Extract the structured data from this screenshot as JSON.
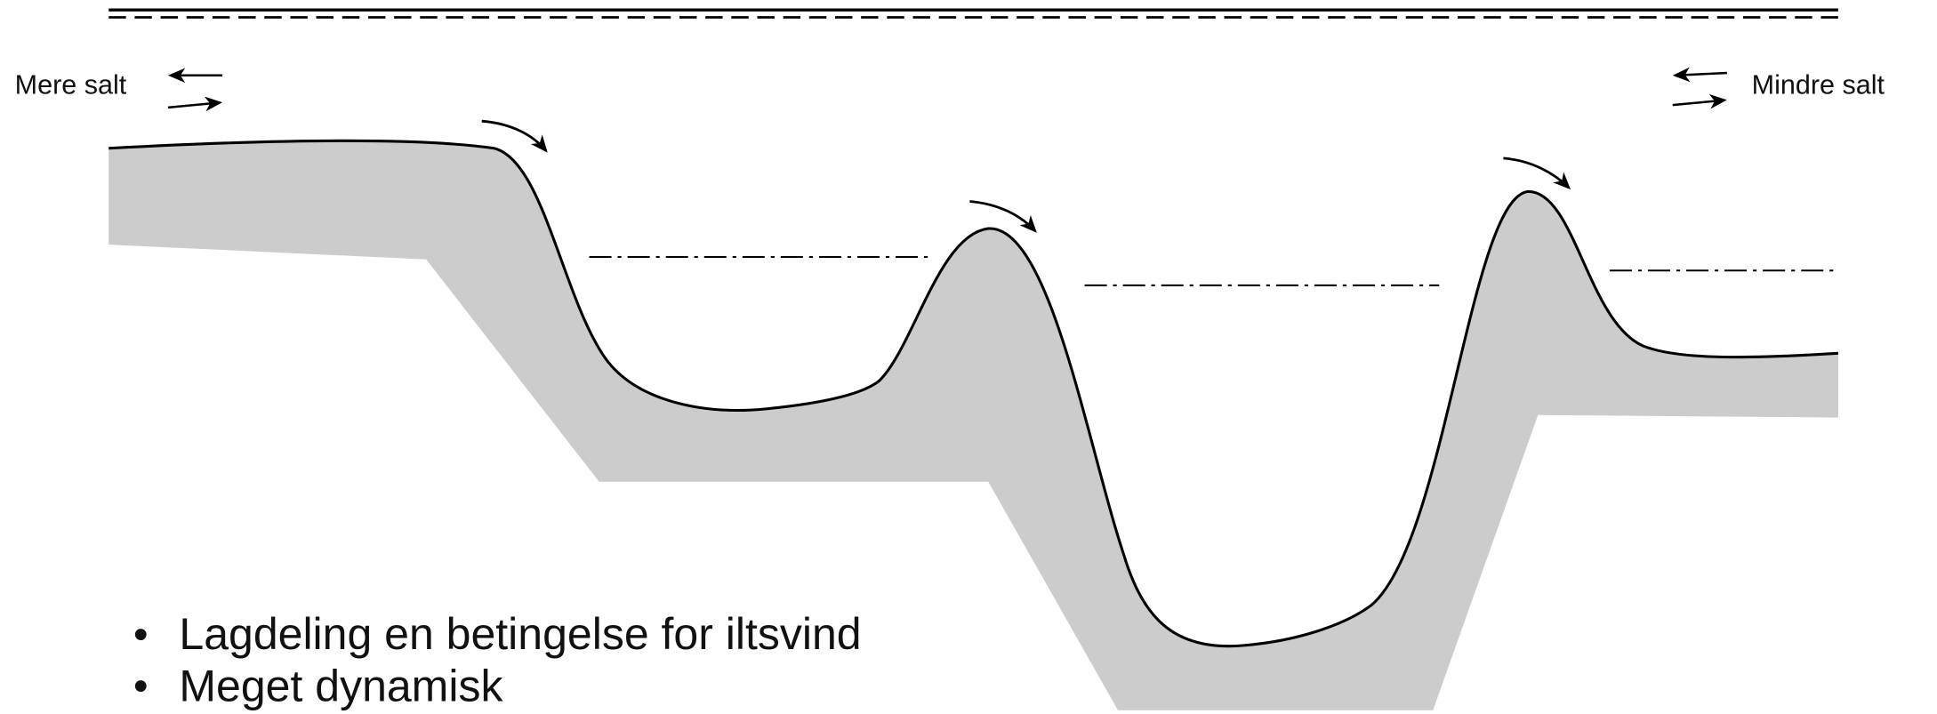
{
  "labels": {
    "left": "Mere salt",
    "right": "Mindre salt"
  },
  "bullets": [
    "Lagdeling en betingelse for iltsvind",
    "Meget dynamisk"
  ]
}
